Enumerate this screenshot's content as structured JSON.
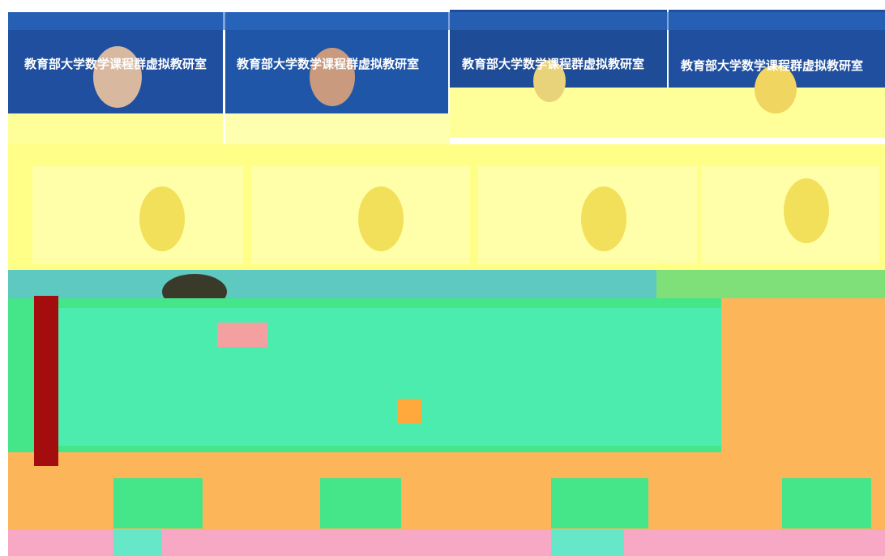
{
  "tiles": [
    {
      "banner": "教育部大学数学课程群虚拟教研室"
    },
    {
      "banner": "教育部大学数学课程群虚拟教研室"
    },
    {
      "banner": "教育部大学数学课程群虚拟教研室"
    },
    {
      "banner": "教育部大学数学课程群虚拟教研室"
    }
  ]
}
